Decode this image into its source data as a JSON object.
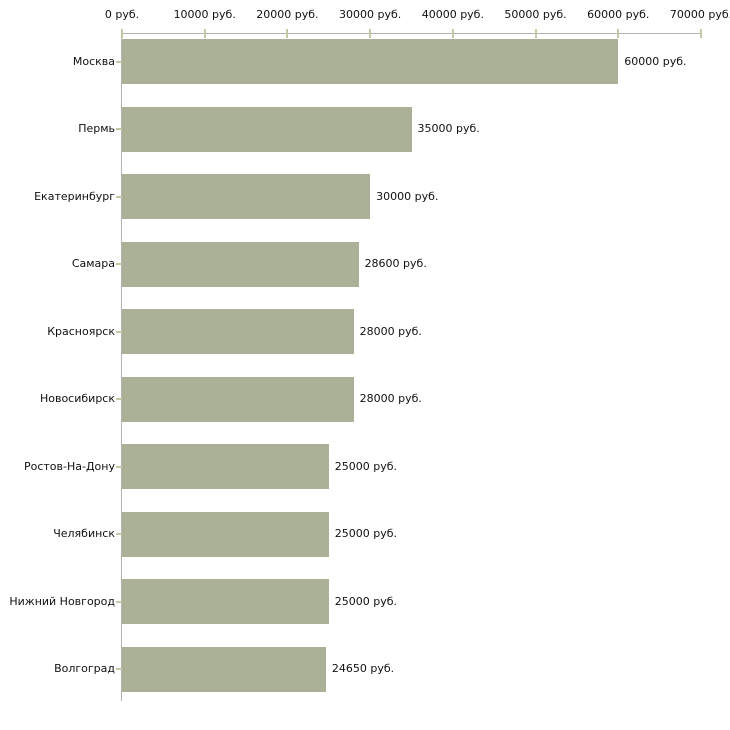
{
  "chart_data": {
    "type": "bar",
    "orientation": "horizontal",
    "title": "",
    "xlabel": "",
    "ylabel": "",
    "grid": false,
    "legend": false,
    "categories": [
      "Москва",
      "Пермь",
      "Екатеринбург",
      "Самара",
      "Красноярск",
      "Новосибирск",
      "Ростов-На-Дону",
      "Челябинск",
      "Нижний Новгород",
      "Волгоград"
    ],
    "values": [
      60000,
      35000,
      30000,
      28600,
      28000,
      28000,
      25000,
      25000,
      25000,
      24650
    ],
    "value_labels": [
      "60000 руб.",
      "35000 руб.",
      "30000 руб.",
      "28600 руб.",
      "28000 руб.",
      "28000 руб.",
      "25000 руб.",
      "25000 руб.",
      "25000 руб.",
      "24650 руб."
    ],
    "x_axis": {
      "position": "top",
      "min": 0,
      "max": 70000,
      "tick_values": [
        0,
        10000,
        20000,
        30000,
        40000,
        50000,
        60000,
        70000
      ],
      "tick_labels": [
        "0 руб.",
        "10000 руб.",
        "20000 руб.",
        "30000 руб.",
        "40000 руб.",
        "50000 руб.",
        "60000 руб.",
        "70000 руб."
      ],
      "unit": "руб."
    },
    "colors": {
      "bar": "#abb196",
      "axis_line": "#b3b3b3",
      "tick_mark": "#c6c7a5",
      "text": "#111111",
      "background": "#ffffff"
    }
  }
}
